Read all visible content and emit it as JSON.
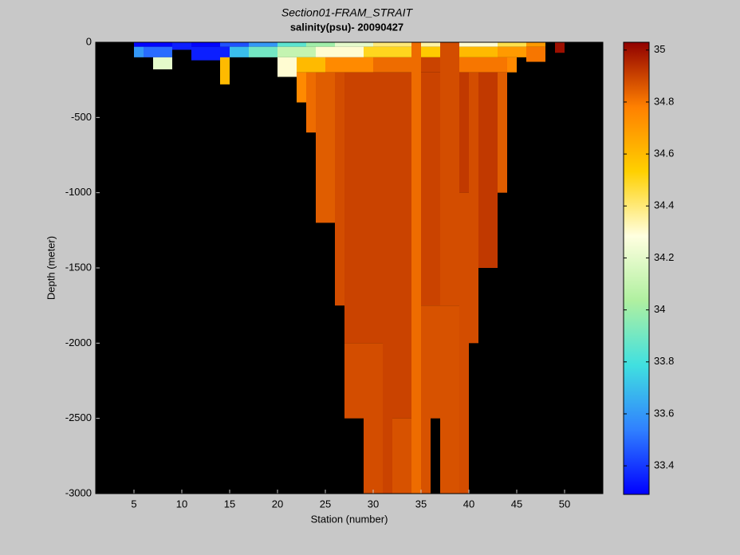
{
  "chart_data": {
    "type": "heatmap",
    "title": "Section01-FRAM_STRAIT",
    "subtitle": "salinity(psu)- 20090427",
    "x_label": "Station (number)",
    "y_label": "Depth (meter)",
    "xlim": [
      1,
      54
    ],
    "ylim": [
      -3000,
      0
    ],
    "xticks": [
      5,
      10,
      15,
      20,
      25,
      30,
      35,
      40,
      45,
      50
    ],
    "yticks": [
      0,
      -500,
      -1000,
      -1500,
      -2000,
      -2500,
      -3000
    ],
    "colorbar": {
      "lim": [
        33.29,
        35.03
      ],
      "ticks": [
        33.4,
        33.6,
        33.8,
        34,
        34.2,
        34.4,
        34.6,
        34.8,
        35
      ]
    },
    "colormap": [
      "#0000ff",
      "#3080ff",
      "#40e0e0",
      "#b0f0a0",
      "#ffffe0",
      "#ffd000",
      "#ff8000",
      "#900000"
    ],
    "background": "#000000",
    "cells": [
      {
        "x": [
          5,
          9
        ],
        "y": [
          0,
          -30
        ],
        "value": 33.3
      },
      {
        "x": [
          9,
          11
        ],
        "y": [
          0,
          -50
        ],
        "value": 33.35
      },
      {
        "x": [
          11,
          14
        ],
        "y": [
          0,
          -30
        ],
        "value": 33.3
      },
      {
        "x": [
          14,
          17
        ],
        "y": [
          0,
          -30
        ],
        "value": 33.45
      },
      {
        "x": [
          17,
          20
        ],
        "y": [
          0,
          -30
        ],
        "value": 33.6
      },
      {
        "x": [
          20,
          23
        ],
        "y": [
          0,
          -30
        ],
        "value": 33.85
      },
      {
        "x": [
          23,
          26
        ],
        "y": [
          0,
          -30
        ],
        "value": 34.0
      },
      {
        "x": [
          26,
          30
        ],
        "y": [
          0,
          -30
        ],
        "value": 34.2
      },
      {
        "x": [
          30,
          34
        ],
        "y": [
          0,
          -30
        ],
        "value": 34.4
      },
      {
        "x": [
          35,
          37
        ],
        "y": [
          0,
          -30
        ],
        "value": 34.35
      },
      {
        "x": [
          39,
          43
        ],
        "y": [
          0,
          -30
        ],
        "value": 34.3
      },
      {
        "x": [
          43,
          46
        ],
        "y": [
          0,
          -30
        ],
        "value": 34.45
      },
      {
        "x": [
          46,
          48
        ],
        "y": [
          0,
          -30
        ],
        "value": 34.7
      },
      {
        "x": [
          49,
          50
        ],
        "y": [
          0,
          -70
        ],
        "value": 35.0
      },
      {
        "x": [
          5,
          6
        ],
        "y": [
          -30,
          -100
        ],
        "value": 33.6
      },
      {
        "x": [
          6,
          9
        ],
        "y": [
          -30,
          -100
        ],
        "value": 33.5
      },
      {
        "x": [
          11,
          15
        ],
        "y": [
          -30,
          -120
        ],
        "value": 33.35
      },
      {
        "x": [
          15,
          17
        ],
        "y": [
          -30,
          -100
        ],
        "value": 33.7
      },
      {
        "x": [
          17,
          20
        ],
        "y": [
          -30,
          -100
        ],
        "value": 33.9
      },
      {
        "x": [
          20,
          24
        ],
        "y": [
          -30,
          -100
        ],
        "value": 34.1
      },
      {
        "x": [
          24,
          29
        ],
        "y": [
          -30,
          -100
        ],
        "value": 34.3
      },
      {
        "x": [
          29,
          34
        ],
        "y": [
          -30,
          -100
        ],
        "value": 34.5
      },
      {
        "x": [
          35,
          37
        ],
        "y": [
          -30,
          -100
        ],
        "value": 34.55
      },
      {
        "x": [
          39,
          43
        ],
        "y": [
          -30,
          -100
        ],
        "value": 34.6
      },
      {
        "x": [
          43,
          46
        ],
        "y": [
          -30,
          -100
        ],
        "value": 34.7
      },
      {
        "x": [
          46,
          48
        ],
        "y": [
          -30,
          -130
        ],
        "value": 34.8
      },
      {
        "x": [
          7,
          9
        ],
        "y": [
          -100,
          -180
        ],
        "value": 34.2
      },
      {
        "x": [
          14,
          15
        ],
        "y": [
          -100,
          -280
        ],
        "value": 34.6
      },
      {
        "x": [
          20,
          22
        ],
        "y": [
          -100,
          -230
        ],
        "value": 34.3
      },
      {
        "x": [
          22,
          25
        ],
        "y": [
          -100,
          -200
        ],
        "value": 34.6
      },
      {
        "x": [
          25,
          30
        ],
        "y": [
          -100,
          -200
        ],
        "value": 34.75
      },
      {
        "x": [
          30,
          34
        ],
        "y": [
          -100,
          -200
        ],
        "value": 34.82
      },
      {
        "x": [
          35,
          37
        ],
        "y": [
          -100,
          -200
        ],
        "value": 34.9
      },
      {
        "x": [
          39,
          44
        ],
        "y": [
          -100,
          -200
        ],
        "value": 34.8
      },
      {
        "x": [
          44,
          45
        ],
        "y": [
          -100,
          -200
        ],
        "value": 34.75
      },
      {
        "x": [
          22,
          23
        ],
        "y": [
          -200,
          -400
        ],
        "value": 34.75
      },
      {
        "x": [
          23,
          24
        ],
        "y": [
          -200,
          -600
        ],
        "value": 34.82
      },
      {
        "x": [
          24,
          26
        ],
        "y": [
          -200,
          -1200
        ],
        "value": 34.85
      },
      {
        "x": [
          26,
          27
        ],
        "y": [
          -200,
          -1750
        ],
        "value": 34.88
      },
      {
        "x": [
          27,
          29
        ],
        "y": [
          -200,
          -2000
        ],
        "value": 34.9
      },
      {
        "x": [
          27,
          29
        ],
        "y": [
          -2000,
          -2500
        ],
        "value": 34.88
      },
      {
        "x": [
          29,
          31
        ],
        "y": [
          -200,
          -2000
        ],
        "value": 34.9
      },
      {
        "x": [
          29,
          31
        ],
        "y": [
          -2000,
          -3000
        ],
        "value": 34.88
      },
      {
        "x": [
          31,
          32
        ],
        "y": [
          -200,
          -3000
        ],
        "value": 34.9
      },
      {
        "x": [
          32,
          34
        ],
        "y": [
          -200,
          -2500
        ],
        "value": 34.9
      },
      {
        "x": [
          32,
          34
        ],
        "y": [
          -2500,
          -3000
        ],
        "value": 34.87
      },
      {
        "x": [
          34,
          35
        ],
        "y": [
          0,
          -3000
        ],
        "value": 34.82
      },
      {
        "x": [
          35,
          36
        ],
        "y": [
          -200,
          -1750
        ],
        "value": 34.9
      },
      {
        "x": [
          35,
          36
        ],
        "y": [
          -1750,
          -3000
        ],
        "value": 34.87
      },
      {
        "x": [
          36,
          37
        ],
        "y": [
          -200,
          -1750
        ],
        "value": 34.9
      },
      {
        "x": [
          36,
          37
        ],
        "y": [
          -1750,
          -2500
        ],
        "value": 34.87
      },
      {
        "x": [
          37,
          39
        ],
        "y": [
          0,
          -1750
        ],
        "value": 34.88
      },
      {
        "x": [
          37,
          39
        ],
        "y": [
          -1750,
          -3000
        ],
        "value": 34.87
      },
      {
        "x": [
          39,
          40
        ],
        "y": [
          -200,
          -1000
        ],
        "value": 34.92
      },
      {
        "x": [
          39,
          40
        ],
        "y": [
          -1000,
          -3000
        ],
        "value": 34.88
      },
      {
        "x": [
          40,
          41
        ],
        "y": [
          -200,
          -2000
        ],
        "value": 34.88
      },
      {
        "x": [
          41,
          43
        ],
        "y": [
          -200,
          -1500
        ],
        "value": 34.92
      },
      {
        "x": [
          43,
          44
        ],
        "y": [
          -200,
          -1000
        ],
        "value": 34.85
      }
    ]
  }
}
